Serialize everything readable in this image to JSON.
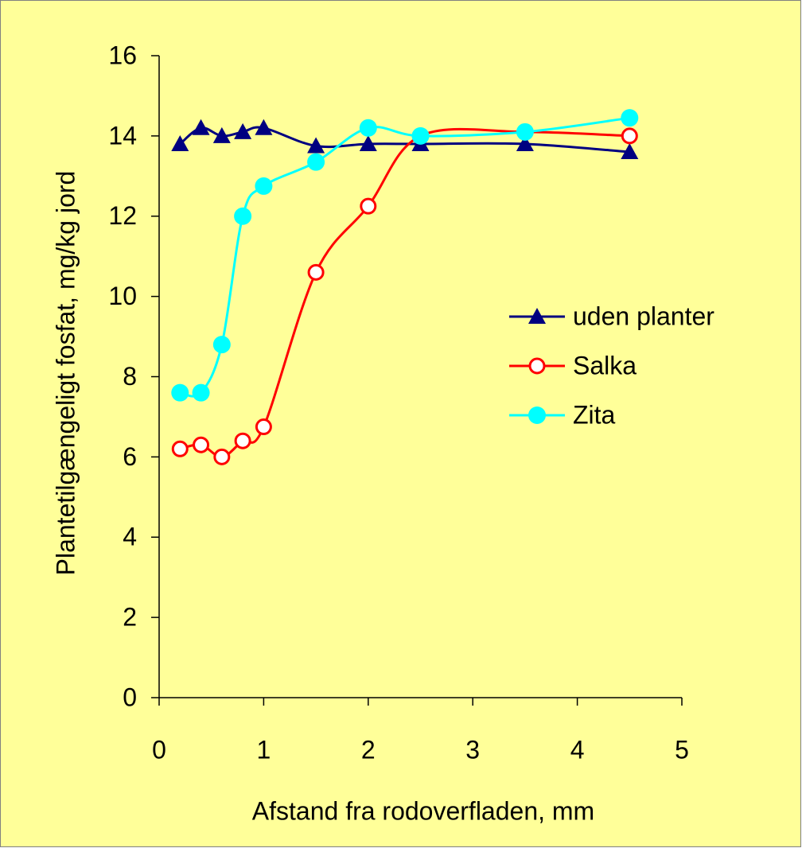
{
  "chart_data": {
    "type": "line",
    "xlabel": "Afstand fra rodoverfladen, mm",
    "ylabel": "Plantetilgængeligt fosfat, mg/kg jord",
    "x": [
      0.2,
      0.4,
      0.6,
      0.8,
      1.0,
      1.5,
      2.0,
      2.5,
      3.5,
      4.5
    ],
    "series": [
      {
        "name": "uden planter",
        "color": "#000080",
        "marker": "triangle",
        "values": [
          13.8,
          14.2,
          14.0,
          14.1,
          14.2,
          13.75,
          13.8,
          13.8,
          13.8,
          13.6
        ]
      },
      {
        "name": "Salka",
        "color": "#ff0000",
        "marker": "open-circle",
        "values": [
          6.2,
          6.3,
          6.0,
          6.4,
          6.75,
          10.6,
          12.25,
          14.0,
          14.1,
          14.0
        ]
      },
      {
        "name": "Zita",
        "color": "#00ffff",
        "marker": "circle",
        "values": [
          7.6,
          7.6,
          8.8,
          12.0,
          12.75,
          13.35,
          14.2,
          14.0,
          14.1,
          14.45
        ]
      }
    ],
    "xlim": [
      0,
      5
    ],
    "xticks": [
      0,
      1,
      2,
      3,
      4,
      5
    ],
    "ylim": [
      0,
      16
    ],
    "yticks": [
      0,
      2,
      4,
      6,
      8,
      10,
      12,
      14,
      16
    ],
    "smooth": true,
    "grid": false,
    "legend": "right",
    "background": "#ffff99"
  }
}
